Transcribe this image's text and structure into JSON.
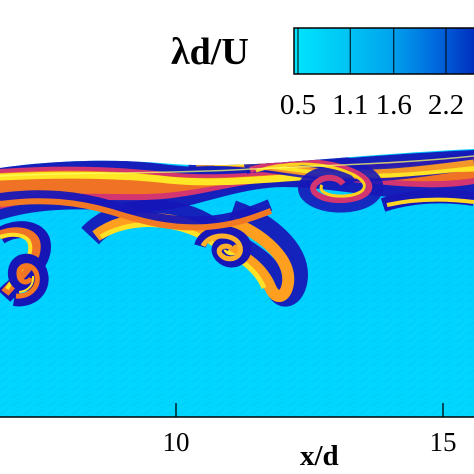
{
  "chart_data": {
    "type": "heatmap",
    "title": "",
    "colorbar": {
      "label": "λd/U",
      "ticks": [
        0.5,
        1.1,
        1.6,
        2.2
      ],
      "colors": [
        "#00e5ff",
        "#00c8f5",
        "#00a6ee",
        "#0068dd",
        "#0021b8"
      ]
    },
    "x_axis": {
      "label": "x/d",
      "ticks": [
        10,
        15
      ]
    },
    "field_colors": {
      "background": "#00d4ff",
      "dark_band": "#1616b7",
      "mid_band": "#c62f78",
      "hot_band": "#f06b25",
      "warm_band": "#ffd61e",
      "edge_band": "#f7ff4a"
    }
  }
}
